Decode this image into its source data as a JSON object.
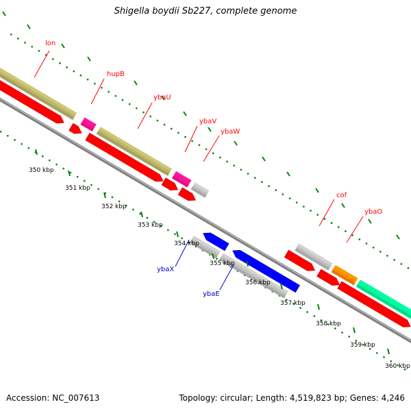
{
  "title": "Shigella boydii Sb227, complete genome",
  "footer": {
    "accession": "Accession: NC_007613",
    "summary": "Topology: circular; Length: 4,519,823 bp; Genes: 4,246"
  },
  "ticks": [
    {
      "label": "350 kbp"
    },
    {
      "label": "351 kbp"
    },
    {
      "label": "352 kbp"
    },
    {
      "label": "353 kbp"
    },
    {
      "label": "354 kbp"
    },
    {
      "label": "355 kbp"
    },
    {
      "label": "356 kbp"
    },
    {
      "label": "357 kbp"
    },
    {
      "label": "358 kbp"
    },
    {
      "label": "359 kbp"
    },
    {
      "label": "360 kbp"
    }
  ],
  "genes": [
    {
      "label": "lon",
      "strand": "forward"
    },
    {
      "label": "hupB",
      "strand": "forward"
    },
    {
      "label": "ybaU",
      "strand": "forward"
    },
    {
      "label": "ybaV",
      "strand": "forward"
    },
    {
      "label": "ybaW",
      "strand": "forward"
    },
    {
      "label": "cof",
      "strand": "forward"
    },
    {
      "label": "ybaO",
      "strand": "forward"
    },
    {
      "label": "ybaX",
      "strand": "reverse"
    },
    {
      "label": "ybaE",
      "strand": "reverse"
    }
  ],
  "colors": {
    "backbone": "#808080",
    "cds": "#ff0000",
    "reverse_cds": "#0000ff",
    "gene_khaki": "#bdb76b",
    "gene_magenta": "#ff1493",
    "gene_grey": "#c0c0c0",
    "gene_orange": "#ff8c00",
    "gene_teal": "#00fa9a",
    "tick": "#008000",
    "forward_label": "#ff0000",
    "reverse_label": "#0000cc"
  }
}
